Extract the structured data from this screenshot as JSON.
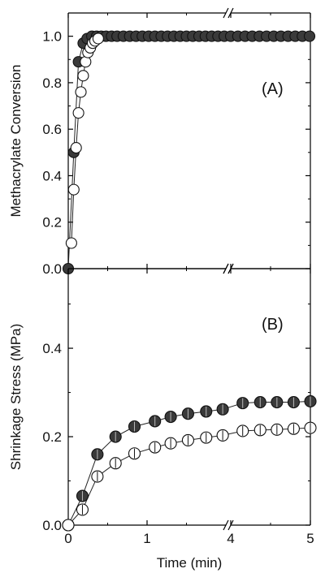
{
  "chart_data": [
    {
      "type": "scatter",
      "panel_label": "(A)",
      "ylabel": "Methacrylate Conversion",
      "xlabel": "",
      "ylim": [
        0,
        1.1
      ],
      "y_ticks": [
        "0.0",
        "0.2",
        "0.4",
        "0.6",
        "0.8",
        "1.0"
      ],
      "x_ticks": [],
      "x_axis_break": true,
      "x_segments": [
        [
          0,
          2
        ],
        [
          4,
          5
        ]
      ],
      "series": [
        {
          "marker": "filled-circle",
          "x": [
            0,
            0.07,
            0.13,
            0.19,
            0.24,
            0.3,
            0.36,
            0.42,
            0.48,
            0.55,
            0.62,
            0.7,
            0.78,
            0.86,
            0.94,
            1.02,
            1.1,
            1.18,
            1.26,
            1.34,
            1.42,
            1.5,
            1.58,
            1.66,
            1.74,
            1.82,
            1.9,
            1.98,
            4.0,
            4.09,
            4.18,
            4.27,
            4.36,
            4.45,
            4.54,
            4.63,
            4.72,
            4.81,
            4.9,
            4.99
          ],
          "y": [
            0.0,
            0.5,
            0.89,
            0.97,
            0.99,
            1.0,
            1.0,
            1.0,
            1.0,
            1.0,
            1.0,
            1.0,
            1.0,
            1.0,
            1.0,
            1.0,
            1.0,
            1.0,
            1.0,
            1.0,
            1.0,
            1.0,
            1.0,
            1.0,
            1.0,
            1.0,
            1.0,
            1.0,
            1.0,
            1.0,
            1.0,
            1.0,
            1.0,
            1.0,
            1.0,
            1.0,
            1.0,
            1.0,
            1.0,
            1.0
          ]
        },
        {
          "marker": "open-circle",
          "x": [
            0.04,
            0.07,
            0.1,
            0.13,
            0.16,
            0.19,
            0.22,
            0.25,
            0.28,
            0.31,
            0.34,
            0.38
          ],
          "y": [
            0.11,
            0.34,
            0.52,
            0.67,
            0.76,
            0.83,
            0.89,
            0.93,
            0.95,
            0.97,
            0.98,
            0.99
          ]
        }
      ]
    },
    {
      "type": "scatter",
      "panel_label": "(B)",
      "ylabel": "Shrinkage Stress (MPa)",
      "xlabel": "Time (min)",
      "ylim": [
        0,
        0.58
      ],
      "y_ticks": [
        "0.0",
        "0.2",
        "0.4"
      ],
      "x_ticks": [
        "0",
        "1",
        "4",
        "5"
      ],
      "x_axis_break": true,
      "x_segments": [
        [
          0,
          2
        ],
        [
          4,
          5
        ]
      ],
      "series": [
        {
          "marker": "filled-circle",
          "x": [
            0,
            0.18,
            0.37,
            0.6,
            0.84,
            1.1,
            1.3,
            1.52,
            1.75,
            1.96,
            4.15,
            4.37,
            4.58,
            4.79,
            5.0
          ],
          "y": [
            0.0,
            0.066,
            0.16,
            0.2,
            0.223,
            0.235,
            0.245,
            0.252,
            0.257,
            0.262,
            0.276,
            0.278,
            0.278,
            0.278,
            0.28
          ]
        },
        {
          "marker": "open-circle",
          "x": [
            0,
            0.18,
            0.37,
            0.6,
            0.84,
            1.1,
            1.3,
            1.52,
            1.75,
            1.96,
            4.15,
            4.37,
            4.58,
            4.79,
            5.0
          ],
          "y": [
            0.0,
            0.035,
            0.11,
            0.14,
            0.162,
            0.176,
            0.185,
            0.192,
            0.198,
            0.203,
            0.213,
            0.215,
            0.216,
            0.218,
            0.22
          ]
        }
      ]
    }
  ]
}
